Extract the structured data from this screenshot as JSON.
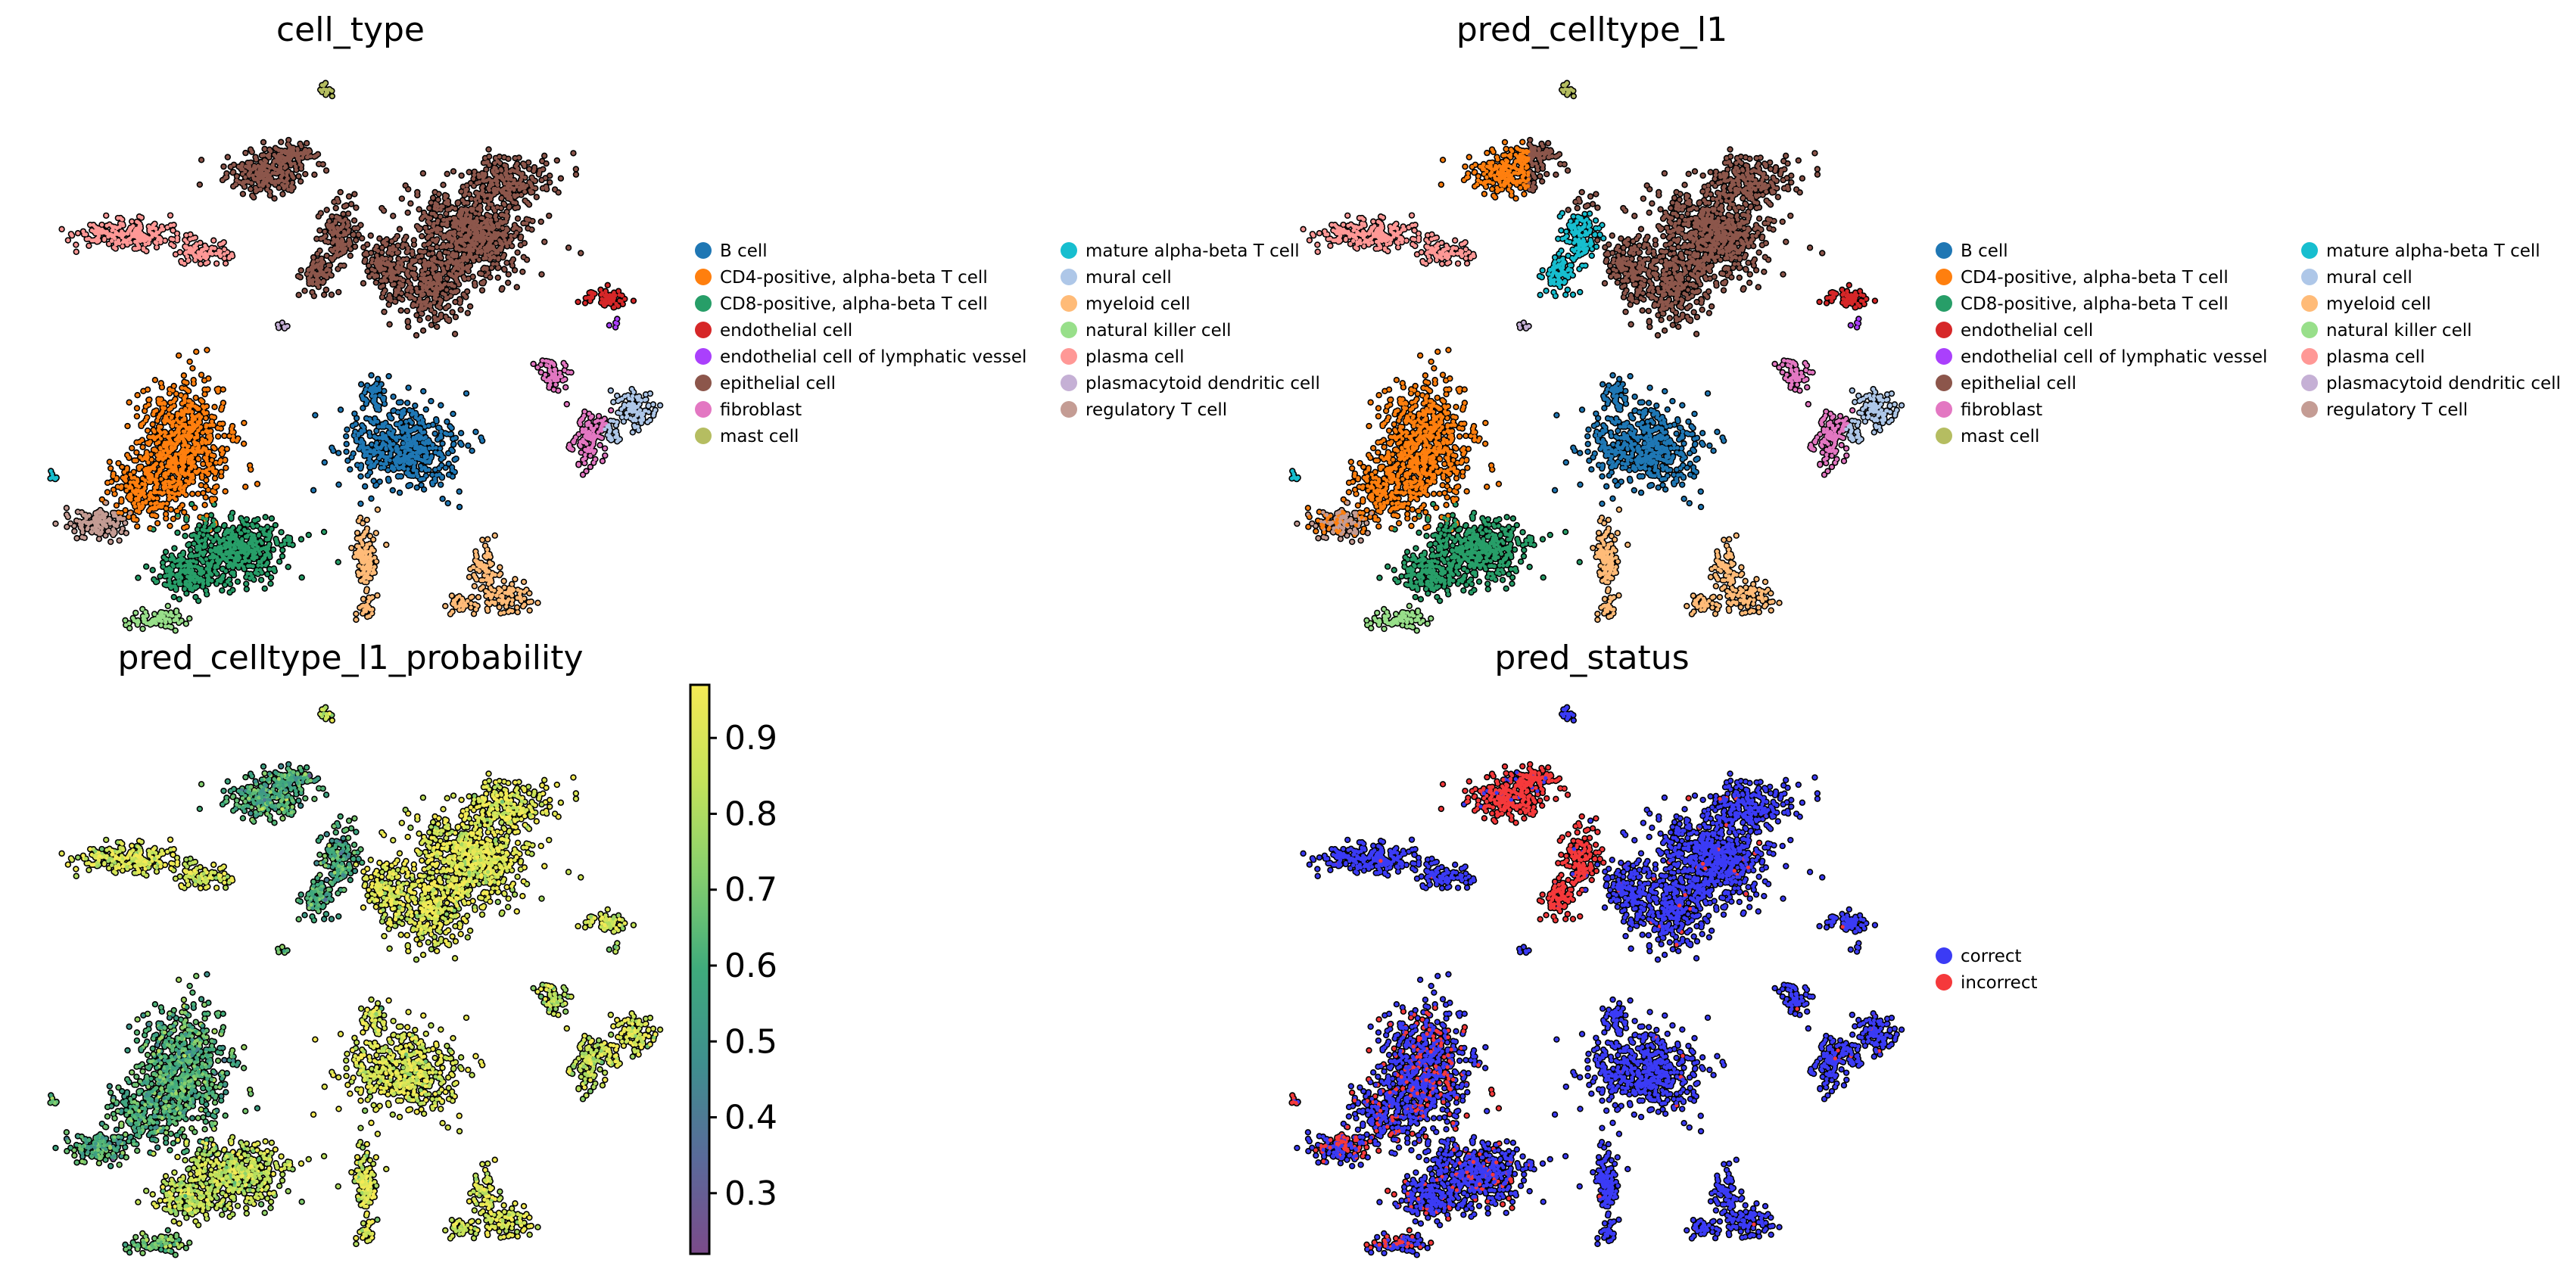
{
  "chart_data": [
    {
      "type": "scatter",
      "title": "cell_type",
      "xlabel": "",
      "ylabel": "",
      "grid": false,
      "legend_position": "right",
      "legend": [
        {
          "label": "B cell",
          "color": "#1f77b4"
        },
        {
          "label": "CD4-positive, alpha-beta T cell",
          "color": "#ff7f0e"
        },
        {
          "label": "CD8-positive, alpha-beta T cell",
          "color": "#279e68"
        },
        {
          "label": "endothelial cell",
          "color": "#d62728"
        },
        {
          "label": "endothelial cell of lymphatic vessel",
          "color": "#aa40fc"
        },
        {
          "label": "epithelial cell",
          "color": "#8c564b"
        },
        {
          "label": "fibroblast",
          "color": "#e377c2"
        },
        {
          "label": "mast cell",
          "color": "#b5bd61"
        },
        {
          "label": "mature alpha-beta T cell",
          "color": "#17becf"
        },
        {
          "label": "mural cell",
          "color": "#aec7e8"
        },
        {
          "label": "myeloid cell",
          "color": "#ffbb78"
        },
        {
          "label": "natural killer cell",
          "color": "#98df8a"
        },
        {
          "label": "plasma cell",
          "color": "#ff9896"
        },
        {
          "label": "plasmacytoid dendritic cell",
          "color": "#c5b0d5"
        },
        {
          "label": "regulatory T cell",
          "color": "#c49c94"
        }
      ]
    },
    {
      "type": "scatter",
      "title": "pred_celltype_l1",
      "xlabel": "",
      "ylabel": "",
      "grid": false,
      "legend_position": "right",
      "legend": [
        {
          "label": "B cell",
          "color": "#1f77b4"
        },
        {
          "label": "CD4-positive, alpha-beta T cell",
          "color": "#ff7f0e"
        },
        {
          "label": "CD8-positive, alpha-beta T cell",
          "color": "#279e68"
        },
        {
          "label": "endothelial cell",
          "color": "#d62728"
        },
        {
          "label": "endothelial cell of lymphatic vessel",
          "color": "#aa40fc"
        },
        {
          "label": "epithelial cell",
          "color": "#8c564b"
        },
        {
          "label": "fibroblast",
          "color": "#e377c2"
        },
        {
          "label": "mast cell",
          "color": "#b5bd61"
        },
        {
          "label": "mature alpha-beta T cell",
          "color": "#17becf"
        },
        {
          "label": "mural cell",
          "color": "#aec7e8"
        },
        {
          "label": "myeloid cell",
          "color": "#ffbb78"
        },
        {
          "label": "natural killer cell",
          "color": "#98df8a"
        },
        {
          "label": "plasma cell",
          "color": "#ff9896"
        },
        {
          "label": "plasmacytoid dendritic cell",
          "color": "#c5b0d5"
        },
        {
          "label": "regulatory T cell",
          "color": "#c49c94"
        }
      ]
    },
    {
      "type": "scatter",
      "title": "pred_celltype_l1_probability",
      "xlabel": "",
      "ylabel": "",
      "grid": false,
      "colorbar": {
        "ticks": [
          0.3,
          0.4,
          0.5,
          0.6,
          0.7,
          0.8,
          0.9
        ],
        "tick_labels": [
          "0.3",
          "0.4",
          "0.5",
          "0.6",
          "0.7",
          "0.8",
          "0.9"
        ],
        "range": [
          0.22,
          0.97
        ],
        "colormap": [
          "#7b4b8a",
          "#5a6a9a",
          "#3f8f8e",
          "#3fab7c",
          "#86cf6e",
          "#c5e35a",
          "#f5ea55"
        ]
      }
    },
    {
      "type": "scatter",
      "title": "pred_status",
      "xlabel": "",
      "ylabel": "",
      "grid": false,
      "legend_position": "right",
      "legend": [
        {
          "label": "correct",
          "color": "#3b3bf5"
        },
        {
          "label": "incorrect",
          "color": "#f5393b"
        }
      ]
    }
  ]
}
